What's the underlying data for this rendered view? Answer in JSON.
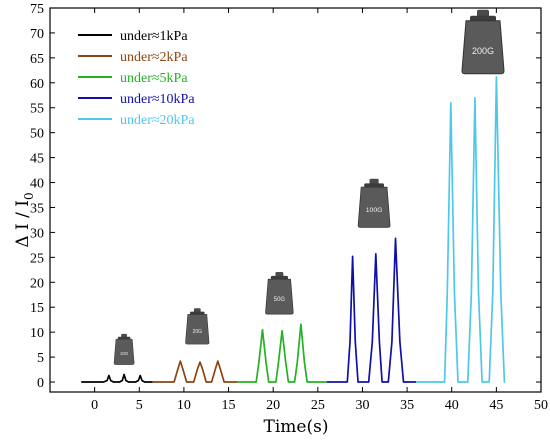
{
  "chart_data": {
    "type": "line",
    "title": "",
    "xlabel": "Time(s)",
    "ylabel": "Δ I / I",
    "ylabel_subscript": "0",
    "xlim": [
      -5,
      50
    ],
    "ylim": [
      -2,
      75
    ],
    "xticks": [
      0,
      5,
      10,
      15,
      20,
      25,
      30,
      35,
      40,
      45,
      50
    ],
    "yticks": [
      0,
      5,
      10,
      15,
      20,
      25,
      30,
      35,
      40,
      45,
      50,
      55,
      60,
      65,
      70,
      75
    ],
    "legend_position": "top-left",
    "series": [
      {
        "name": "under≈1kPa",
        "color": "#000000",
        "x": [
          -1.5,
          1.0,
          1.4,
          1.6,
          1.8,
          2.1,
          2.8,
          3.1,
          3.3,
          3.5,
          3.8,
          4.6,
          4.9,
          5.1,
          5.3,
          5.6,
          6.5
        ],
        "y": [
          0,
          0,
          0.3,
          1.3,
          0.3,
          0,
          0,
          0.3,
          1.5,
          0.3,
          0,
          0,
          0.3,
          1.3,
          0.3,
          0,
          0
        ]
      },
      {
        "name": "under≈2kPa",
        "color": "#8b4513",
        "x": [
          6.5,
          8.9,
          9.3,
          9.6,
          9.9,
          10.3,
          11.1,
          11.5,
          11.8,
          12.1,
          12.5,
          13.1,
          13.5,
          13.8,
          14.1,
          14.5,
          16.0
        ],
        "y": [
          0,
          0,
          2.5,
          4.2,
          2.5,
          0,
          0,
          2.5,
          4.0,
          2.5,
          0,
          0,
          2.5,
          4.2,
          2.5,
          0,
          0
        ]
      },
      {
        "name": "under≈5kPa",
        "color": "#22b222",
        "x": [
          16.0,
          18.1,
          18.4,
          18.8,
          19.2,
          19.5,
          20.3,
          20.6,
          21.0,
          21.4,
          21.7,
          22.4,
          22.7,
          23.1,
          23.5,
          23.8,
          26.0
        ],
        "y": [
          0,
          0,
          4.0,
          10.5,
          4.0,
          0,
          0,
          4.0,
          10.3,
          4.0,
          0,
          0,
          4.0,
          11.6,
          4.0,
          0,
          0
        ]
      },
      {
        "name": "under≈10kPa",
        "color": "#1010a8",
        "x": [
          26.0,
          28.3,
          28.6,
          28.9,
          29.2,
          29.5,
          30.7,
          31.1,
          31.5,
          31.9,
          32.2,
          32.9,
          33.3,
          33.7,
          34.2,
          34.6,
          36.0
        ],
        "y": [
          0,
          0,
          8.0,
          25.2,
          8.0,
          0,
          0,
          8.0,
          25.7,
          8.0,
          0,
          0,
          8.0,
          28.8,
          8.0,
          0,
          0
        ]
      },
      {
        "name": "under≈20kPa",
        "color": "#4fc8e8",
        "x": [
          36.0,
          39.2,
          39.5,
          39.9,
          40.3,
          40.7,
          41.8,
          42.2,
          42.6,
          43.0,
          43.4,
          44.2,
          44.6,
          45.0,
          45.5,
          45.9,
          46.0
        ],
        "y": [
          0,
          0,
          18.0,
          56.0,
          18.0,
          0,
          0,
          18.0,
          57.0,
          18.0,
          0,
          0,
          18.0,
          61.2,
          18.0,
          0,
          0
        ]
      }
    ],
    "weight_annotations": [
      {
        "label": "10G",
        "x": 3.3,
        "y": 3.5,
        "scale": 0.48
      },
      {
        "label": "20G",
        "x": 11.5,
        "y": 7.6,
        "scale": 0.56
      },
      {
        "label": "50G",
        "x": 20.7,
        "y": 13.6,
        "scale": 0.66
      },
      {
        "label": "100G",
        "x": 31.3,
        "y": 31.0,
        "scale": 0.76
      },
      {
        "label": "200G",
        "x": 43.5,
        "y": 61.8,
        "scale": 1.0
      }
    ]
  }
}
